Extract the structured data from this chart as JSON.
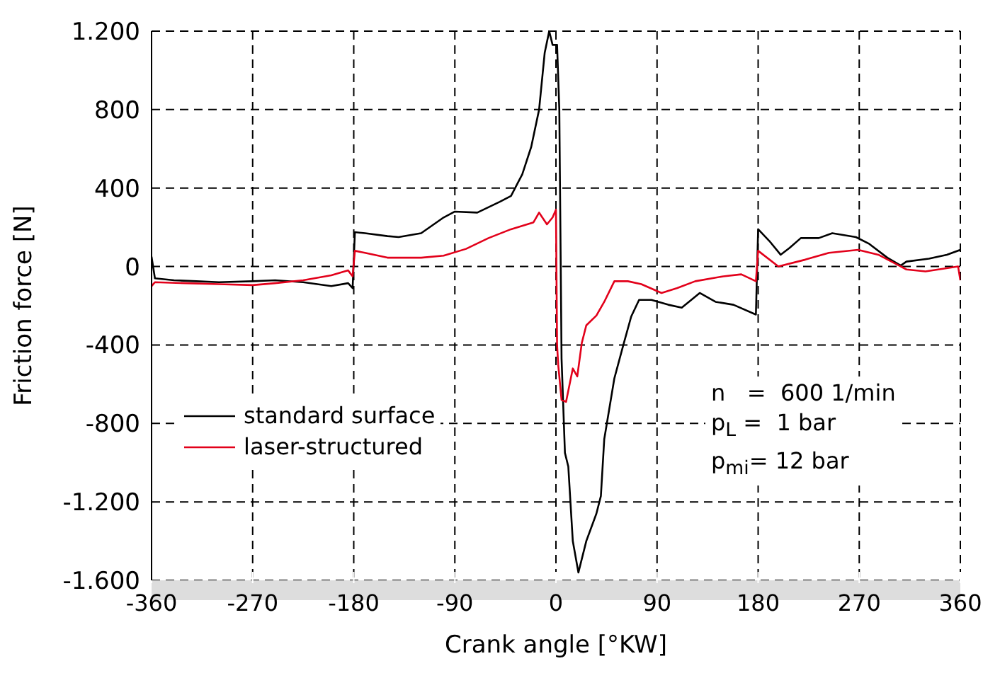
{
  "chart_data": {
    "type": "line",
    "xlabel": "Crank angle [°KW]",
    "ylabel": "Friction force [N]",
    "xlim": [
      -360,
      360
    ],
    "xticks": [
      -360,
      -270,
      -180,
      -90,
      0,
      90,
      180,
      270,
      360
    ],
    "ylim": [
      -1600,
      1200
    ],
    "yticks": [
      {
        "value": -1600,
        "label": "-1.600"
      },
      {
        "value": -1200,
        "label": "-1.200"
      },
      -800,
      -400,
      0,
      400,
      800,
      {
        "value": 1200,
        "label": "1.200"
      }
    ],
    "grid": true,
    "legend": "left",
    "line_style": "solid",
    "marker": "none",
    "annotations": [
      "n   =  600 1/min",
      "p$_{L}$ =  1 bar",
      "p$_{mi}$= 12 bar"
    ],
    "series": [
      {
        "name": "standard surface",
        "color": "#000000",
        "x": [
          -360,
          -357,
          -340,
          -320,
          -300,
          -270,
          -250,
          -225,
          -200,
          -185,
          -181,
          -179,
          -170,
          -150,
          -140,
          -120,
          -100,
          -90,
          -70,
          -50,
          -40,
          -30,
          -22,
          -15,
          -10,
          -6,
          -3,
          1,
          3,
          5,
          8,
          11,
          15,
          20,
          27,
          36,
          40,
          43,
          52,
          60,
          67,
          74,
          85,
          100,
          112,
          128,
          142,
          158,
          178,
          180,
          190,
          200,
          208,
          218,
          234,
          246,
          267,
          279,
          295,
          307,
          312,
          332,
          348,
          360
        ],
        "values": [
          50,
          -60,
          -70,
          -75,
          -80,
          -75,
          -70,
          -80,
          -100,
          -85,
          -110,
          175,
          170,
          155,
          150,
          170,
          250,
          280,
          275,
          330,
          360,
          470,
          610,
          800,
          1090,
          1200,
          1130,
          1130,
          800,
          -470,
          -950,
          -1020,
          -1400,
          -1560,
          -1400,
          -1260,
          -1170,
          -880,
          -570,
          -400,
          -255,
          -170,
          -170,
          -195,
          -210,
          -135,
          -180,
          -195,
          -245,
          190,
          130,
          60,
          95,
          145,
          145,
          170,
          150,
          115,
          45,
          5,
          25,
          40,
          60,
          85
        ]
      },
      {
        "name": "laser-structured",
        "color": "#e2001a",
        "x": [
          -360,
          -357,
          -330,
          -300,
          -270,
          -250,
          -225,
          -200,
          -185,
          -181,
          -179,
          -170,
          -150,
          -120,
          -100,
          -80,
          -60,
          -40,
          -20,
          -15,
          -8,
          -3,
          0,
          1,
          2,
          5,
          9,
          15,
          19,
          23,
          27,
          36,
          43,
          52,
          64,
          76,
          94,
          108,
          124,
          149,
          165,
          178,
          180,
          198,
          222,
          243,
          269,
          287,
          312,
          329,
          358,
          360
        ],
        "values": [
          -100,
          -80,
          -85,
          -90,
          -95,
          -85,
          -70,
          -45,
          -20,
          -50,
          80,
          70,
          45,
          45,
          55,
          90,
          145,
          190,
          225,
          275,
          215,
          250,
          290,
          -400,
          -500,
          -680,
          -690,
          -520,
          -560,
          -390,
          -300,
          -250,
          -180,
          -75,
          -75,
          -90,
          -135,
          -110,
          -75,
          -50,
          -40,
          -75,
          80,
          0,
          35,
          70,
          85,
          60,
          -15,
          -25,
          0,
          -70
        ]
      }
    ]
  }
}
